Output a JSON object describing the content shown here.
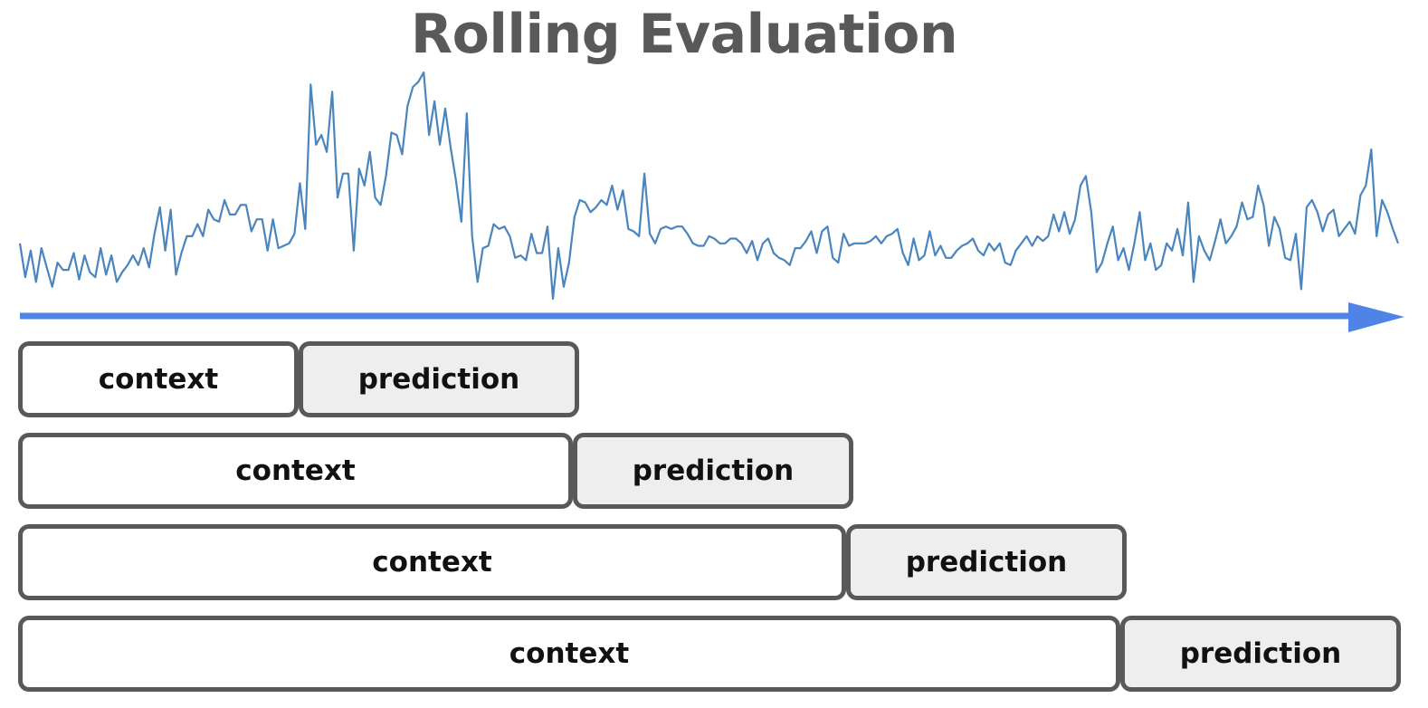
{
  "title": "Rolling Evaluation",
  "colors": {
    "series_line": "#4a85bd",
    "time_arrow": "#4f84e6",
    "box_border": "#595959",
    "prediction_fill": "#eeeeee",
    "context_fill": "#ffffff",
    "title_text": "#595959"
  },
  "windows": [
    {
      "context_label": "context",
      "prediction_label": "prediction"
    },
    {
      "context_label": "context",
      "prediction_label": "prediction"
    },
    {
      "context_label": "context",
      "prediction_label": "prediction"
    },
    {
      "context_label": "context",
      "prediction_label": "prediction"
    }
  ],
  "series": [
    61,
    47,
    58,
    45,
    59,
    51,
    43,
    53,
    50,
    50,
    57,
    46,
    56,
    49,
    47,
    59,
    48,
    56,
    45,
    49,
    52,
    56,
    52,
    59,
    51,
    65,
    76,
    58,
    75,
    48,
    57,
    64,
    64,
    69,
    64,
    75,
    71,
    70,
    79,
    73,
    73,
    77,
    77,
    66,
    71,
    71,
    58,
    71,
    59,
    60,
    61,
    65,
    86,
    67,
    127,
    102,
    106,
    99,
    124,
    80,
    90,
    90,
    58,
    92,
    85,
    99,
    80,
    77,
    89,
    107,
    106,
    98,
    118,
    126,
    128,
    132,
    106,
    120,
    102,
    117,
    101,
    87,
    70,
    115,
    64,
    45,
    59,
    60,
    69,
    67,
    68,
    64,
    55,
    56,
    54,
    65,
    57,
    57,
    68,
    38,
    59,
    43,
    53,
    72,
    79,
    78,
    74,
    76,
    79,
    77,
    85,
    75,
    83,
    67,
    66,
    64,
    90,
    65,
    61,
    67,
    68,
    67,
    68,
    68,
    65,
    61,
    60,
    60,
    64,
    63,
    61,
    61,
    63,
    63,
    61,
    57,
    62,
    54,
    61,
    63,
    57,
    55,
    54,
    52,
    59,
    59,
    62,
    66,
    57,
    66,
    68,
    55,
    53,
    65,
    60,
    61,
    61,
    61,
    62,
    64,
    61,
    64,
    65,
    67,
    57,
    52,
    63,
    54,
    56,
    66,
    56,
    60,
    55,
    55,
    58,
    60,
    61,
    63,
    58,
    56,
    61,
    58,
    61,
    53,
    52,
    58,
    61,
    64,
    60,
    64,
    62,
    64,
    73,
    66,
    74,
    65,
    71,
    85,
    89,
    74,
    49,
    53,
    61,
    68,
    54,
    59,
    50,
    61,
    74,
    54,
    61,
    50,
    52,
    61,
    58,
    67,
    56,
    78,
    45,
    64,
    58,
    54,
    62,
    71,
    61,
    64,
    68,
    78,
    71,
    72,
    85,
    77,
    60,
    72,
    67,
    55,
    54,
    65,
    42,
    76,
    79,
    74,
    66,
    73,
    75,
    64,
    67,
    70,
    65,
    81,
    85,
    100,
    64,
    79,
    74,
    67,
    61
  ]
}
